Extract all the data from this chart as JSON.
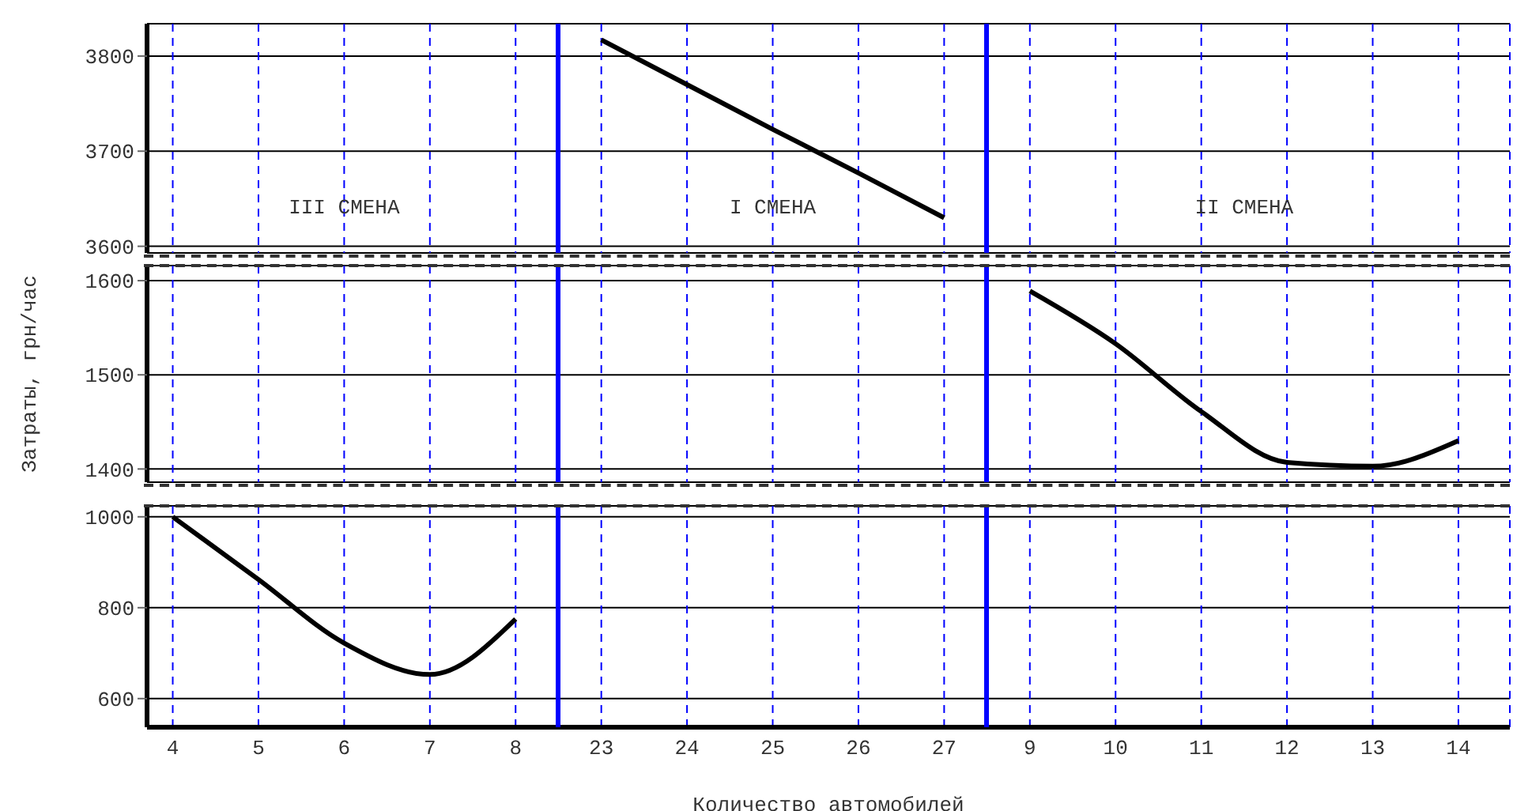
{
  "chart_data": [
    {
      "type": "line",
      "categories": [
        "4",
        "5",
        "6",
        "7",
        "8",
        "23",
        "24",
        "25",
        "26",
        "27",
        "9",
        "10",
        "11",
        "12",
        "13",
        "14"
      ],
      "series": [
        {
          "color": "#000000",
          "values": [
            null,
            null,
            null,
            null,
            null,
            3817,
            3770,
            3723,
            3677,
            3630,
            null,
            null,
            null,
            null,
            null,
            null
          ]
        }
      ],
      "ylim": [
        3593,
        3834
      ],
      "yticks": [
        3600,
        3700,
        3800
      ],
      "grid": true,
      "tick_labels": "y",
      "annotations": [
        "III СМЕНА",
        "I СМЕНА",
        "II СМЕНА"
      ]
    },
    {
      "type": "line",
      "categories": [
        "4",
        "5",
        "6",
        "7",
        "8",
        "23",
        "24",
        "25",
        "26",
        "27",
        "9",
        "10",
        "11",
        "12",
        "13",
        "14"
      ],
      "series": [
        {
          "color": "#000000",
          "values": [
            null,
            null,
            null,
            null,
            null,
            null,
            null,
            null,
            null,
            null,
            1589,
            1533,
            1461,
            1407,
            1403,
            1430
          ]
        }
      ],
      "ylim": [
        1386,
        1616
      ],
      "yticks": [
        1400,
        1500,
        1600
      ],
      "grid": true,
      "tick_labels": "y",
      "ylabel": "Затраты, грн/час"
    },
    {
      "type": "line",
      "categories": [
        "4",
        "5",
        "6",
        "7",
        "8",
        "23",
        "24",
        "25",
        "26",
        "27",
        "9",
        "10",
        "11",
        "12",
        "13",
        "14"
      ],
      "series": [
        {
          "color": "#000000",
          "values": [
            1000,
            862,
            722,
            653,
            775,
            null,
            null,
            null,
            null,
            null,
            null,
            null,
            null,
            null,
            null,
            null
          ]
        }
      ],
      "ylim": [
        537,
        1024
      ],
      "yticks": [
        600,
        800,
        1000
      ],
      "grid": true,
      "xlabel": "Количество автомобилей"
    }
  ]
}
